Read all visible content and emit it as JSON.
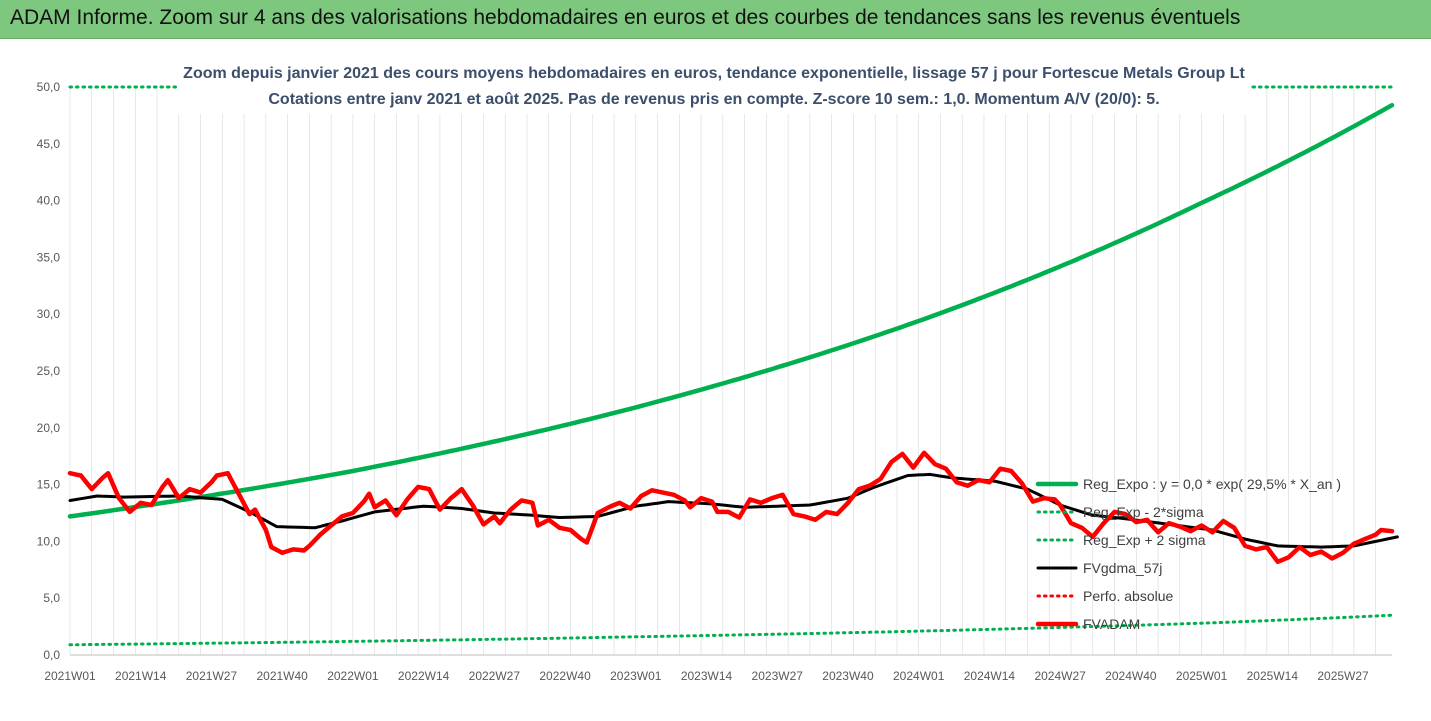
{
  "banner": {
    "title": "ADAM Informe. Zoom sur 4 ans des valorisations hebdomadaires en euros et des courbes de tendances sans les revenus éventuels"
  },
  "colors": {
    "banner": "#7dc87e",
    "reg_expo": "#00b050",
    "sigma": "#00b050",
    "fvgdma": "#000000",
    "perfo": "#ff0000",
    "fvadam": "#ff0000",
    "grid": "#d9d9d9",
    "title": "#3b4e6b"
  },
  "chart_data": {
    "type": "line",
    "title": "Zoom depuis janvier 2021 des cours moyens hebdomadaires en euros, tendance exponentielle, lissage 57 j pour Fortescue Metals Group Lt",
    "subtitle": "Cotations entre janv 2021 et août 2025.  Pas de revenus pris en compte. Z-score 10 sem.: 1,0. Momentum A/V (20/0): 5.",
    "xlabel": "",
    "ylabel": "",
    "ylim": [
      0,
      50
    ],
    "yticks": [
      "0,0",
      "5,0",
      "10,0",
      "15,0",
      "20,0",
      "25,0",
      "30,0",
      "35,0",
      "40,0",
      "45,0",
      "50,0"
    ],
    "x_tick_labels": [
      "2021W01",
      "2021W14",
      "2021W27",
      "2021W40",
      "2022W01",
      "2022W14",
      "2022W27",
      "2022W40",
      "2023W01",
      "2023W14",
      "2023W27",
      "2023W40",
      "2024W01",
      "2024W14",
      "2024W27",
      "2024W40",
      "2025W01",
      "2025W14",
      "2025W27"
    ],
    "x_tick_weeks": [
      0,
      13,
      26,
      39,
      52,
      65,
      78,
      91,
      104,
      117,
      130,
      143,
      156,
      169,
      182,
      195,
      208,
      221,
      234
    ],
    "n_weeks": 244,
    "grid": "vertical",
    "legend_position": "right",
    "series": [
      {
        "name": "Reg_Expo : y = 0,0 * exp( 29,5% *  X_an )",
        "style": "solid-thick",
        "color": "#00b050",
        "anchors": [
          [
            0,
            12.2
          ],
          [
            52,
            16.2
          ],
          [
            104,
            21.8
          ],
          [
            156,
            29.4
          ],
          [
            208,
            39.8
          ],
          [
            243,
            48.4
          ]
        ]
      },
      {
        "name": "Reg_Exp - 2*sigma",
        "style": "dotted",
        "color": "#00b050",
        "anchors": [
          [
            0,
            0.9
          ],
          [
            52,
            1.2
          ],
          [
            104,
            1.6
          ],
          [
            156,
            2.1
          ],
          [
            208,
            2.8
          ],
          [
            243,
            3.5
          ]
        ]
      },
      {
        "name": "Reg_Exp + 2 sigma",
        "style": "dotted",
        "color": "#00b050",
        "anchors": [
          [
            0,
            50
          ],
          [
            243,
            50
          ]
        ]
      },
      {
        "name": "FVgdma_57j",
        "style": "solid",
        "color": "#000000",
        "anchors": [
          [
            0,
            13.6
          ],
          [
            5,
            14.0
          ],
          [
            10,
            13.9
          ],
          [
            20,
            14.0
          ],
          [
            28,
            13.7
          ],
          [
            33,
            12.6
          ],
          [
            38,
            11.3
          ],
          [
            45,
            11.2
          ],
          [
            50,
            11.8
          ],
          [
            56,
            12.6
          ],
          [
            65,
            13.1
          ],
          [
            72,
            12.9
          ],
          [
            78,
            12.5
          ],
          [
            85,
            12.3
          ],
          [
            90,
            12.1
          ],
          [
            97,
            12.2
          ],
          [
            104,
            13.1
          ],
          [
            110,
            13.5
          ],
          [
            118,
            13.3
          ],
          [
            124,
            13.0
          ],
          [
            130,
            13.1
          ],
          [
            136,
            13.2
          ],
          [
            143,
            13.8
          ],
          [
            148,
            14.8
          ],
          [
            154,
            15.8
          ],
          [
            158,
            15.9
          ],
          [
            162,
            15.6
          ],
          [
            170,
            15.3
          ],
          [
            176,
            14.6
          ],
          [
            182,
            13.2
          ],
          [
            188,
            12.3
          ],
          [
            194,
            12.0
          ],
          [
            202,
            11.5
          ],
          [
            210,
            11.0
          ],
          [
            216,
            10.2
          ],
          [
            222,
            9.6
          ],
          [
            230,
            9.5
          ],
          [
            236,
            9.6
          ],
          [
            244,
            10.4
          ]
        ]
      },
      {
        "name": "Perfo. absolue",
        "style": "dotted",
        "color": "#ff0000",
        "anchors": []
      },
      {
        "name": "FVADAM",
        "style": "solid-thick",
        "color": "#ff0000",
        "anchors": [
          [
            0,
            16.0
          ],
          [
            2,
            15.8
          ],
          [
            4,
            14.6
          ],
          [
            6,
            15.6
          ],
          [
            7,
            16.0
          ],
          [
            9,
            13.8
          ],
          [
            11,
            12.6
          ],
          [
            13,
            13.4
          ],
          [
            15,
            13.2
          ],
          [
            17,
            14.8
          ],
          [
            18,
            15.4
          ],
          [
            20,
            13.8
          ],
          [
            22,
            14.6
          ],
          [
            24,
            14.3
          ],
          [
            26,
            15.2
          ],
          [
            27,
            15.8
          ],
          [
            29,
            16.0
          ],
          [
            31,
            14.2
          ],
          [
            33,
            12.4
          ],
          [
            34,
            12.8
          ],
          [
            36,
            11.0
          ],
          [
            37,
            9.5
          ],
          [
            39,
            9.0
          ],
          [
            41,
            9.3
          ],
          [
            43,
            9.2
          ],
          [
            44,
            9.6
          ],
          [
            46,
            10.6
          ],
          [
            48,
            11.4
          ],
          [
            50,
            12.2
          ],
          [
            52,
            12.5
          ],
          [
            54,
            13.5
          ],
          [
            55,
            14.2
          ],
          [
            56,
            13.0
          ],
          [
            58,
            13.6
          ],
          [
            60,
            12.3
          ],
          [
            62,
            13.7
          ],
          [
            64,
            14.8
          ],
          [
            66,
            14.6
          ],
          [
            68,
            12.8
          ],
          [
            70,
            13.8
          ],
          [
            72,
            14.6
          ],
          [
            74,
            13.2
          ],
          [
            76,
            11.5
          ],
          [
            78,
            12.2
          ],
          [
            79,
            11.6
          ],
          [
            81,
            12.8
          ],
          [
            83,
            13.6
          ],
          [
            85,
            13.4
          ],
          [
            86,
            11.4
          ],
          [
            88,
            11.9
          ],
          [
            90,
            11.2
          ],
          [
            92,
            11.0
          ],
          [
            94,
            10.2
          ],
          [
            95,
            9.9
          ],
          [
            97,
            12.5
          ],
          [
            99,
            13.0
          ],
          [
            101,
            13.4
          ],
          [
            103,
            12.9
          ],
          [
            105,
            14.0
          ],
          [
            107,
            14.5
          ],
          [
            109,
            14.3
          ],
          [
            111,
            14.1
          ],
          [
            113,
            13.6
          ],
          [
            114,
            13.0
          ],
          [
            116,
            13.8
          ],
          [
            118,
            13.5
          ],
          [
            119,
            12.6
          ],
          [
            121,
            12.6
          ],
          [
            123,
            12.1
          ],
          [
            125,
            13.7
          ],
          [
            127,
            13.4
          ],
          [
            129,
            13.8
          ],
          [
            131,
            14.1
          ],
          [
            133,
            12.4
          ],
          [
            135,
            12.2
          ],
          [
            137,
            11.9
          ],
          [
            139,
            12.6
          ],
          [
            141,
            12.4
          ],
          [
            143,
            13.4
          ],
          [
            145,
            14.6
          ],
          [
            147,
            14.9
          ],
          [
            149,
            15.5
          ],
          [
            151,
            17.0
          ],
          [
            153,
            17.7
          ],
          [
            155,
            16.5
          ],
          [
            157,
            17.8
          ],
          [
            159,
            16.8
          ],
          [
            161,
            16.4
          ],
          [
            163,
            15.2
          ],
          [
            165,
            14.9
          ],
          [
            167,
            15.4
          ],
          [
            169,
            15.2
          ],
          [
            171,
            16.4
          ],
          [
            173,
            16.2
          ],
          [
            175,
            15.1
          ],
          [
            177,
            13.5
          ],
          [
            179,
            13.8
          ],
          [
            181,
            13.7
          ],
          [
            182,
            13.2
          ],
          [
            184,
            11.6
          ],
          [
            186,
            11.2
          ],
          [
            188,
            10.4
          ],
          [
            190,
            11.6
          ],
          [
            192,
            12.6
          ],
          [
            194,
            12.4
          ],
          [
            196,
            11.7
          ],
          [
            198,
            11.9
          ],
          [
            200,
            10.8
          ],
          [
            202,
            11.6
          ],
          [
            204,
            11.3
          ],
          [
            206,
            10.9
          ],
          [
            208,
            11.4
          ],
          [
            210,
            10.8
          ],
          [
            212,
            11.8
          ],
          [
            214,
            11.2
          ],
          [
            216,
            9.6
          ],
          [
            218,
            9.3
          ],
          [
            220,
            9.5
          ],
          [
            222,
            8.2
          ],
          [
            224,
            8.6
          ],
          [
            226,
            9.5
          ],
          [
            228,
            8.8
          ],
          [
            230,
            9.1
          ],
          [
            232,
            8.5
          ],
          [
            234,
            9.0
          ],
          [
            236,
            9.8
          ],
          [
            238,
            10.2
          ],
          [
            240,
            10.6
          ],
          [
            241,
            11.0
          ],
          [
            243,
            10.9
          ]
        ]
      }
    ]
  },
  "legend": {
    "items": [
      {
        "label": "Reg_Expo : y = 0,0 * exp( 29,5% *  X_an )",
        "style": "solid-thick",
        "color": "#00b050"
      },
      {
        "label": "Reg_Exp - 2*sigma",
        "style": "dotted",
        "color": "#00b050"
      },
      {
        "label": "Reg_Exp + 2 sigma",
        "style": "dotted",
        "color": "#00b050"
      },
      {
        "label": "FVgdma_57j",
        "style": "solid",
        "color": "#000000"
      },
      {
        "label": "Perfo. absolue",
        "style": "dotted",
        "color": "#ff0000"
      },
      {
        "label": "FVADAM",
        "style": "solid-thick",
        "color": "#ff0000"
      }
    ]
  }
}
